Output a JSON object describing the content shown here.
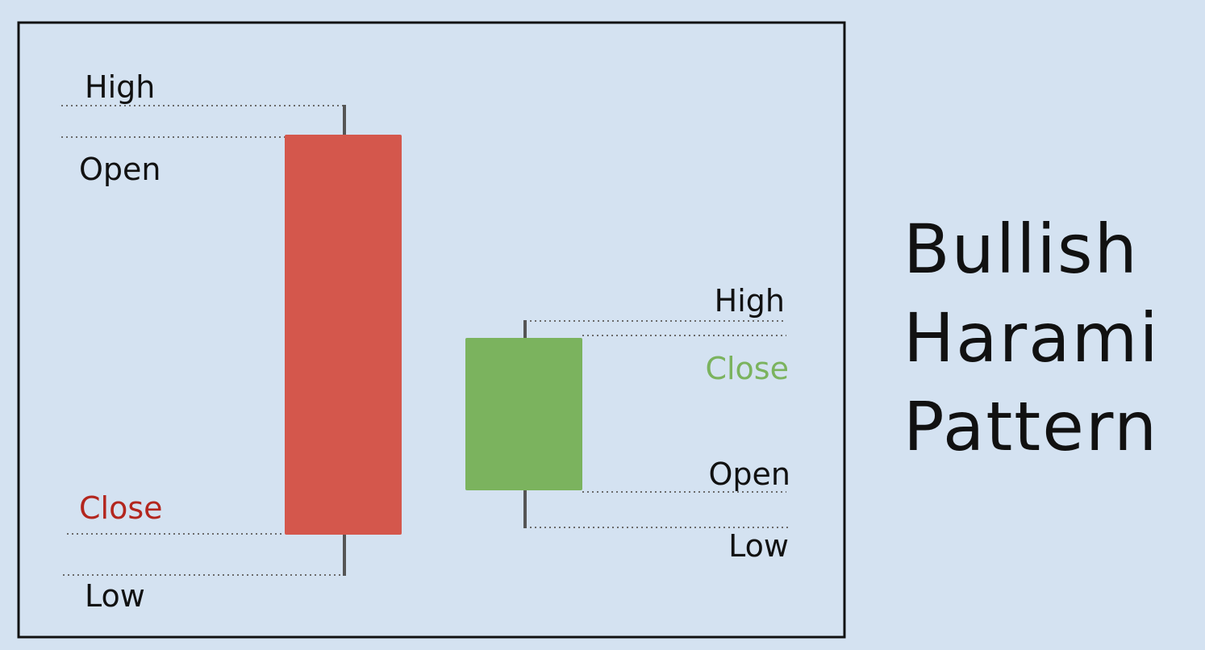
{
  "title": {
    "line1": "Bullish",
    "line2": "Harami",
    "line3": "Pattern"
  },
  "candles": [
    {
      "id": "bearish-candle",
      "direction": "bearish",
      "color": "#d4574c",
      "labels": {
        "high": "High",
        "open": "Open",
        "close": "Close",
        "low": "Low"
      },
      "label_colors": {
        "high": "#111111",
        "open": "#111111",
        "close": "#b3261e",
        "low": "#111111"
      }
    },
    {
      "id": "bullish-candle",
      "direction": "bullish",
      "color": "#7bb35e",
      "labels": {
        "high": "High",
        "close": "Close",
        "open": "Open",
        "low": "Low"
      },
      "label_colors": {
        "high": "#111111",
        "close": "#7bb35e",
        "open": "#111111",
        "low": "#111111"
      }
    }
  ],
  "colors": {
    "background": "#d4e2f1",
    "frame": "#111111",
    "wick": "#555555",
    "guide": "#6b6b6b"
  }
}
